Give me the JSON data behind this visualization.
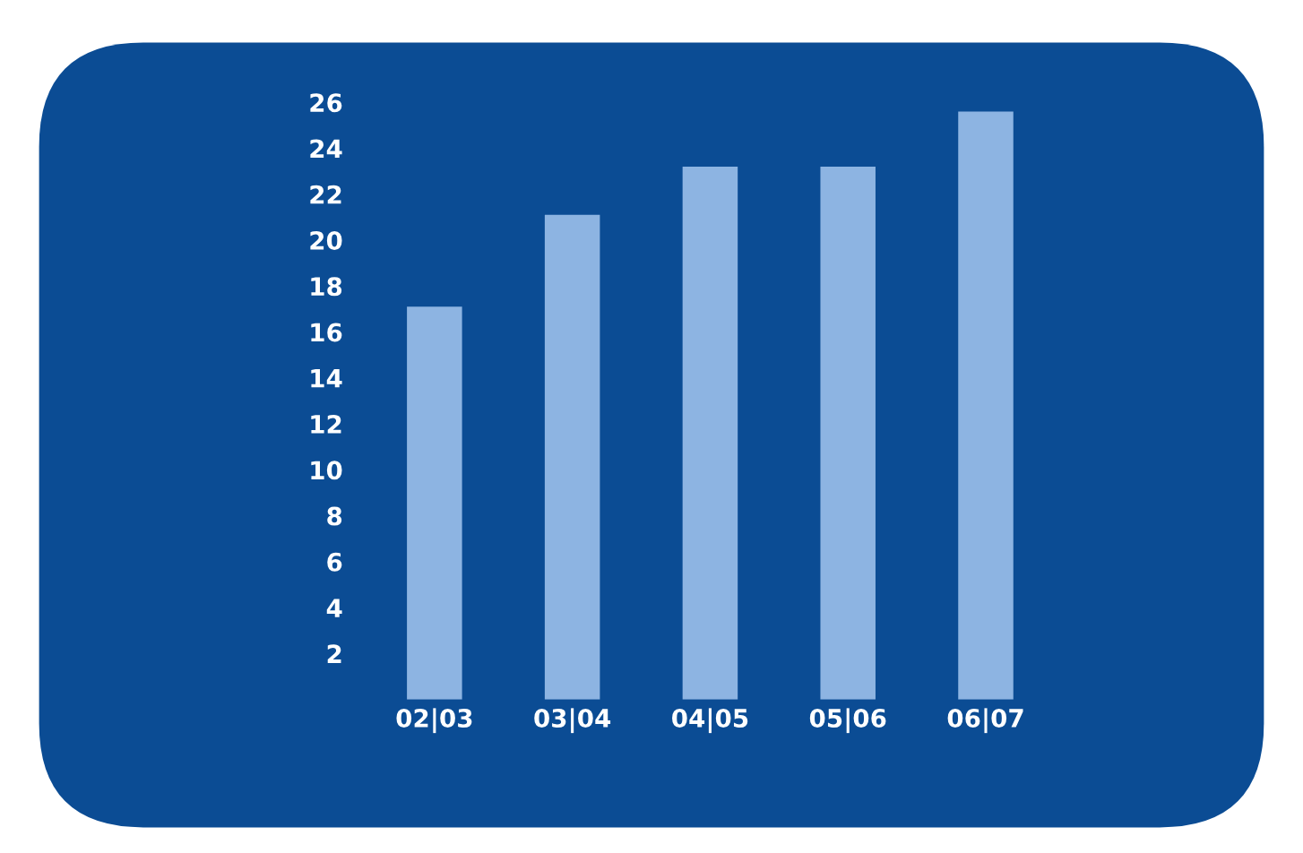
{
  "chart_data": {
    "type": "bar",
    "categories": [
      "02|03",
      "03|04",
      "04|05",
      "05|06",
      "06|07"
    ],
    "values": [
      17.1,
      21.1,
      23.2,
      23.2,
      25.6
    ],
    "color": "#8db4e2",
    "ylim": [
      0,
      26
    ],
    "yticks": [
      2,
      4,
      6,
      8,
      10,
      12,
      14,
      16,
      18,
      20,
      22,
      24,
      26
    ]
  }
}
